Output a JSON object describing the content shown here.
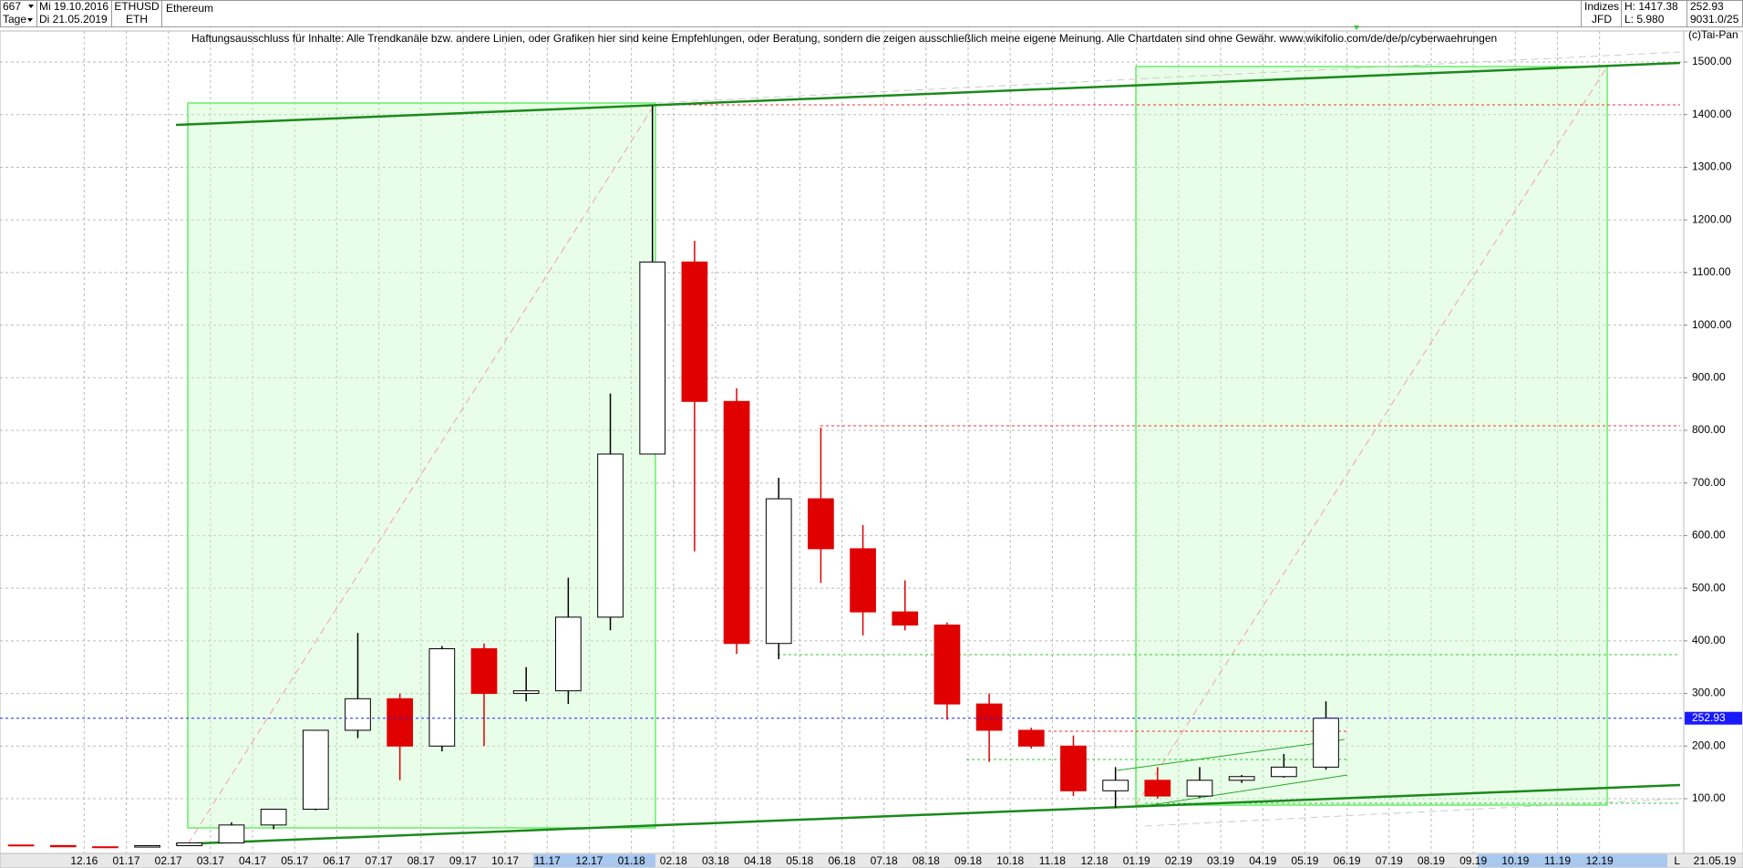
{
  "header": {
    "count": "667",
    "start_date": "Mi 19.10.2016",
    "period": "Tage",
    "end_date": "Di 21.05.2019",
    "symbol": "ETHUSD",
    "short": "ETH",
    "name": "Ethereum",
    "group": "Indizes",
    "source": "JFD",
    "high_label": "H: 1417.38",
    "low_label": "L: 5.980",
    "last": "252.93",
    "info": "9031.0/25"
  },
  "disclaimer": "Haftungsausschluss für Inhalte: Alle Trendkanäle bzw. andere Linien, oder Grafiken hier sind keine Empfehlungen, oder Beratung, sondern die zeigen ausschließlich meine eigene Meinung. Alle Chartdaten sind ohne Gewähr.  www.wikifolio.com/de/de/p/cyberwaehrungen",
  "copyright": "(c)Tai-Pan",
  "chart_data": {
    "type": "candlestick",
    "x": [
      "2016-10",
      "2016-11",
      "2016-12",
      "2017-01",
      "2017-02",
      "2017-03",
      "2017-04",
      "2017-05",
      "2017-06",
      "2017-07",
      "2017-08",
      "2017-09",
      "2017-10",
      "2017-11",
      "2017-12",
      "2018-01",
      "2018-02",
      "2018-03",
      "2018-04",
      "2018-05",
      "2018-06",
      "2018-07",
      "2018-08",
      "2018-09",
      "2018-10",
      "2018-11",
      "2018-12",
      "2019-01",
      "2019-02",
      "2019-03",
      "2019-04",
      "2019-05"
    ],
    "open": [
      12,
      11,
      8.6,
      8,
      10.7,
      16,
      50,
      80,
      230,
      290,
      200,
      385,
      300,
      305,
      445,
      755,
      1120,
      855,
      395,
      670,
      575,
      455,
      430,
      280,
      230,
      200,
      115,
      135,
      105,
      135,
      142,
      160
    ],
    "high": [
      12.5,
      11.5,
      9,
      11.5,
      17,
      55,
      80,
      230,
      415,
      300,
      390,
      395,
      350,
      520,
      870,
      1417,
      1160,
      880,
      710,
      805,
      620,
      515,
      435,
      300,
      235,
      220,
      160,
      160,
      160,
      145,
      185,
      285
    ],
    "low": [
      11,
      8.5,
      6,
      7.9,
      10.6,
      15.5,
      42,
      78,
      215,
      135,
      190,
      200,
      285,
      280,
      420,
      760,
      570,
      375,
      365,
      510,
      410,
      420,
      250,
      170,
      195,
      105,
      82,
      100,
      102,
      130,
      140,
      155
    ],
    "close": [
      11,
      8.6,
      8,
      10.7,
      16,
      50,
      80,
      230,
      290,
      200,
      385,
      300,
      305,
      445,
      755,
      1120,
      855,
      395,
      670,
      575,
      455,
      430,
      280,
      230,
      200,
      115,
      135,
      105,
      135,
      142,
      160,
      253
    ],
    "up_color": "#000000",
    "down_color": "#e00000",
    "xlim": [
      "2016-10",
      "2020-01"
    ],
    "xticks": [
      {
        "value": "2016-12",
        "label": "12.16"
      },
      {
        "value": "2017-01",
        "label": "01.17"
      },
      {
        "value": "2017-02",
        "label": "02.17"
      },
      {
        "value": "2017-03",
        "label": "03.17"
      },
      {
        "value": "2017-04",
        "label": "04.17"
      },
      {
        "value": "2017-05",
        "label": "05.17"
      },
      {
        "value": "2017-06",
        "label": "06.17"
      },
      {
        "value": "2017-07",
        "label": "07.17"
      },
      {
        "value": "2017-08",
        "label": "08.17"
      },
      {
        "value": "2017-09",
        "label": "09.17"
      },
      {
        "value": "2017-10",
        "label": "10.17"
      },
      {
        "value": "2017-11",
        "label": "11.17"
      },
      {
        "value": "2017-12",
        "label": "12.17"
      },
      {
        "value": "2018-01",
        "label": "01.18"
      },
      {
        "value": "2018-02",
        "label": "02.18"
      },
      {
        "value": "2018-03",
        "label": "03.18"
      },
      {
        "value": "2018-04",
        "label": "04.18"
      },
      {
        "value": "2018-05",
        "label": "05.18"
      },
      {
        "value": "2018-06",
        "label": "06.18"
      },
      {
        "value": "2018-07",
        "label": "07.18"
      },
      {
        "value": "2018-08",
        "label": "08.18"
      },
      {
        "value": "2018-09",
        "label": "09.18"
      },
      {
        "value": "2018-10",
        "label": "10.18"
      },
      {
        "value": "2018-11",
        "label": "11.18"
      },
      {
        "value": "2018-12",
        "label": "12.18"
      },
      {
        "value": "2019-01",
        "label": "01.19"
      },
      {
        "value": "2019-02",
        "label": "02.19"
      },
      {
        "value": "2019-03",
        "label": "03.19"
      },
      {
        "value": "2019-04",
        "label": "04.19"
      },
      {
        "value": "2019-05",
        "label": "05.19"
      },
      {
        "value": "2019-06",
        "label": "06.19"
      },
      {
        "value": "2019-07",
        "label": "07.19"
      },
      {
        "value": "2019-08",
        "label": "08.19"
      },
      {
        "value": "2019-09",
        "label": "09.19"
      },
      {
        "value": "2019-10",
        "label": "10.19"
      },
      {
        "value": "2019-11",
        "label": "11.19"
      },
      {
        "value": "2019-12",
        "label": "12.19"
      }
    ],
    "ylim": [
      -4,
      1559
    ],
    "yticks": [
      {
        "value": 100,
        "label": "100.00"
      },
      {
        "value": 200,
        "label": "200.00"
      },
      {
        "value": 300,
        "label": "300.00"
      },
      {
        "value": 400,
        "label": "400.00"
      },
      {
        "value": 500,
        "label": "500.00"
      },
      {
        "value": 600,
        "label": "600.00"
      },
      {
        "value": 700,
        "label": "700.00"
      },
      {
        "value": 800,
        "label": "800.00"
      },
      {
        "value": 900,
        "label": "900.00"
      },
      {
        "value": 1000,
        "label": "1000.00"
      },
      {
        "value": 1100,
        "label": "1100.00"
      },
      {
        "value": 1200,
        "label": "1200.00"
      },
      {
        "value": 1300,
        "label": "1300.00"
      },
      {
        "value": 1400,
        "label": "1400.00"
      },
      {
        "value": 1500,
        "label": "1500.00"
      }
    ],
    "grid": true,
    "last_price": 252.93,
    "last_date": "21.05.19",
    "corner": "L"
  }
}
